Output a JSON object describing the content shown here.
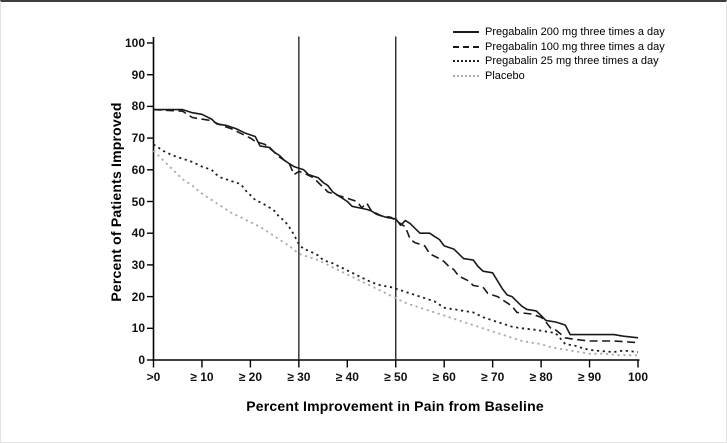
{
  "chart_data": {
    "type": "line",
    "title": "",
    "xlabel": "Percent Improvement in Pain from Baseline",
    "ylabel": "Percent of Patients Improved",
    "xlim": [
      0,
      100
    ],
    "ylim": [
      0,
      100
    ],
    "grid": false,
    "legend_position": "top-right",
    "reference_lines_x": [
      30,
      50
    ],
    "x_ticks": [
      {
        "value": 0,
        "label": ">0"
      },
      {
        "value": 10,
        "label": "≥ 10"
      },
      {
        "value": 20,
        "label": "≥ 20"
      },
      {
        "value": 30,
        "label": "≥ 30"
      },
      {
        "value": 40,
        "label": "≥ 40"
      },
      {
        "value": 50,
        "label": "≥ 50"
      },
      {
        "value": 60,
        "label": "≥ 60"
      },
      {
        "value": 70,
        "label": "≥ 70"
      },
      {
        "value": 80,
        "label": "≥ 80"
      },
      {
        "value": 90,
        "label": "≥ 90"
      },
      {
        "value": 100,
        "label": "100"
      }
    ],
    "y_ticks": [
      {
        "value": 0,
        "label": "0"
      },
      {
        "value": 10,
        "label": "10"
      },
      {
        "value": 20,
        "label": "20"
      },
      {
        "value": 30,
        "label": "30"
      },
      {
        "value": 40,
        "label": "40"
      },
      {
        "value": 50,
        "label": "50"
      },
      {
        "value": 60,
        "label": "60"
      },
      {
        "value": 70,
        "label": "70"
      },
      {
        "value": 80,
        "label": "80"
      },
      {
        "value": 90,
        "label": "90"
      },
      {
        "value": 100,
        "label": "100"
      }
    ],
    "series": [
      {
        "name": "Pregabalin 200 mg three times a day",
        "style": "solid",
        "color": "#1a1a1a",
        "points": [
          [
            0,
            79
          ],
          [
            6,
            79
          ],
          [
            8,
            78
          ],
          [
            10,
            77.5
          ],
          [
            12,
            76
          ],
          [
            13,
            74.5
          ],
          [
            15,
            74
          ],
          [
            17,
            73
          ],
          [
            19,
            71.5
          ],
          [
            20,
            71
          ],
          [
            21,
            70.5
          ],
          [
            22,
            67.5
          ],
          [
            24,
            67
          ],
          [
            25,
            65.5
          ],
          [
            26,
            64.5
          ],
          [
            27,
            63
          ],
          [
            28,
            62
          ],
          [
            29,
            61
          ],
          [
            31,
            60
          ],
          [
            32,
            58.5
          ],
          [
            34,
            57.5
          ],
          [
            35,
            56
          ],
          [
            36,
            55
          ],
          [
            37,
            53
          ],
          [
            38,
            52
          ],
          [
            39,
            51
          ],
          [
            40,
            50
          ],
          [
            41,
            48.5
          ],
          [
            44,
            47.5
          ],
          [
            45,
            47
          ],
          [
            46,
            46
          ],
          [
            48,
            45
          ],
          [
            50,
            44.5
          ],
          [
            51,
            42.5
          ],
          [
            52,
            44
          ],
          [
            53,
            43
          ],
          [
            54,
            41.5
          ],
          [
            55,
            40
          ],
          [
            57,
            40
          ],
          [
            58,
            39
          ],
          [
            59,
            38
          ],
          [
            60,
            36
          ],
          [
            62,
            35
          ],
          [
            63,
            33.5
          ],
          [
            64,
            32
          ],
          [
            66,
            31.5
          ],
          [
            67,
            29.5
          ],
          [
            68,
            28
          ],
          [
            70,
            27.5
          ],
          [
            71,
            25
          ],
          [
            72,
            22.5
          ],
          [
            73,
            20.5
          ],
          [
            74,
            20
          ],
          [
            75,
            18.5
          ],
          [
            76,
            17
          ],
          [
            77,
            16
          ],
          [
            79,
            15.5
          ],
          [
            80,
            14
          ],
          [
            81,
            12.5
          ],
          [
            83,
            12
          ],
          [
            84,
            11.5
          ],
          [
            85,
            11
          ],
          [
            86,
            8
          ],
          [
            90,
            8
          ],
          [
            95,
            8
          ],
          [
            97,
            7.5
          ],
          [
            100,
            7
          ]
        ]
      },
      {
        "name": "Pregabalin 100 mg three times a day",
        "style": "dashed",
        "color": "#1a1a1a",
        "points": [
          [
            0,
            79
          ],
          [
            6,
            78.5
          ],
          [
            8,
            76.5
          ],
          [
            10,
            76
          ],
          [
            12,
            75.5
          ],
          [
            14,
            74
          ],
          [
            16,
            73
          ],
          [
            18,
            71.5
          ],
          [
            20,
            70
          ],
          [
            21,
            69
          ],
          [
            23,
            68
          ],
          [
            25,
            65.5
          ],
          [
            26,
            64
          ],
          [
            28,
            62
          ],
          [
            29,
            58.5
          ],
          [
            30,
            59.5
          ],
          [
            31,
            59
          ],
          [
            33,
            57.5
          ],
          [
            34,
            56
          ],
          [
            35,
            54.5
          ],
          [
            36,
            53
          ],
          [
            38,
            52
          ],
          [
            40,
            51
          ],
          [
            42,
            50
          ],
          [
            43,
            48
          ],
          [
            44,
            49.5
          ],
          [
            45,
            47
          ],
          [
            47,
            45.5
          ],
          [
            49,
            45
          ],
          [
            50,
            44
          ],
          [
            51,
            43
          ],
          [
            52,
            42
          ],
          [
            53,
            38
          ],
          [
            54,
            37
          ],
          [
            56,
            36
          ],
          [
            57,
            33.5
          ],
          [
            59,
            32
          ],
          [
            60,
            31
          ],
          [
            61,
            29.5
          ],
          [
            62,
            28.5
          ],
          [
            63,
            26.5
          ],
          [
            65,
            25
          ],
          [
            66,
            23.5
          ],
          [
            68,
            23
          ],
          [
            69,
            21
          ],
          [
            71,
            20
          ],
          [
            73,
            18
          ],
          [
            74,
            17
          ],
          [
            75,
            15
          ],
          [
            78,
            14.5
          ],
          [
            80,
            13.5
          ],
          [
            81,
            12
          ],
          [
            82,
            10
          ],
          [
            83,
            9.5
          ],
          [
            85,
            7
          ],
          [
            87,
            6.5
          ],
          [
            90,
            6
          ],
          [
            95,
            6
          ],
          [
            100,
            5.5
          ]
        ]
      },
      {
        "name": "Pregabalin 25 mg three times a day",
        "style": "dotted",
        "color": "#1f1f1f",
        "points": [
          [
            0,
            68
          ],
          [
            2,
            66
          ],
          [
            4,
            64.5
          ],
          [
            6,
            63.5
          ],
          [
            8,
            62.5
          ],
          [
            10,
            61
          ],
          [
            12,
            60
          ],
          [
            13,
            58.5
          ],
          [
            14,
            57.5
          ],
          [
            16,
            56.5
          ],
          [
            18,
            55.5
          ],
          [
            19,
            53.5
          ],
          [
            21,
            50.5
          ],
          [
            23,
            49
          ],
          [
            24,
            48
          ],
          [
            25,
            47
          ],
          [
            26,
            45
          ],
          [
            27,
            44
          ],
          [
            28,
            42
          ],
          [
            29,
            39.5
          ],
          [
            30,
            36.5
          ],
          [
            31,
            35
          ],
          [
            32,
            34.5
          ],
          [
            34,
            33
          ],
          [
            35,
            31.5
          ],
          [
            37,
            30.5
          ],
          [
            39,
            29
          ],
          [
            41,
            27.5
          ],
          [
            43,
            26
          ],
          [
            45,
            24.5
          ],
          [
            47,
            23.5
          ],
          [
            49,
            23
          ],
          [
            50,
            22.5
          ],
          [
            52,
            21.5
          ],
          [
            54,
            20.5
          ],
          [
            56,
            19.5
          ],
          [
            58,
            18.5
          ],
          [
            60,
            16.5
          ],
          [
            62,
            16
          ],
          [
            64,
            15.5
          ],
          [
            66,
            15
          ],
          [
            68,
            13.5
          ],
          [
            70,
            12.5
          ],
          [
            72,
            11.5
          ],
          [
            74,
            10.5
          ],
          [
            76,
            10
          ],
          [
            79,
            9.5
          ],
          [
            81,
            9
          ],
          [
            83,
            8.5
          ],
          [
            85,
            5
          ],
          [
            87,
            4.5
          ],
          [
            89,
            3.5
          ],
          [
            91,
            3
          ],
          [
            95,
            2.5
          ],
          [
            97,
            3
          ],
          [
            100,
            2.5
          ]
        ]
      },
      {
        "name": "Placebo",
        "style": "dotted",
        "color": "#ababab",
        "points": [
          [
            0,
            66
          ],
          [
            2,
            63
          ],
          [
            4,
            60
          ],
          [
            6,
            57
          ],
          [
            8,
            55
          ],
          [
            10,
            52.5
          ],
          [
            12,
            50.5
          ],
          [
            14,
            48.5
          ],
          [
            16,
            46.5
          ],
          [
            18,
            45
          ],
          [
            20,
            43.5
          ],
          [
            22,
            42
          ],
          [
            24,
            40
          ],
          [
            26,
            38
          ],
          [
            28,
            36
          ],
          [
            30,
            33.5
          ],
          [
            32,
            32.5
          ],
          [
            34,
            31.5
          ],
          [
            36,
            30
          ],
          [
            38,
            28.5
          ],
          [
            40,
            27
          ],
          [
            42,
            25.5
          ],
          [
            44,
            24
          ],
          [
            46,
            22.5
          ],
          [
            48,
            21
          ],
          [
            50,
            19.5
          ],
          [
            52,
            18
          ],
          [
            54,
            17
          ],
          [
            56,
            16
          ],
          [
            58,
            15
          ],
          [
            60,
            14
          ],
          [
            62,
            13
          ],
          [
            64,
            12
          ],
          [
            66,
            11
          ],
          [
            68,
            10
          ],
          [
            70,
            9
          ],
          [
            72,
            8
          ],
          [
            74,
            7
          ],
          [
            76,
            6
          ],
          [
            78,
            5.5
          ],
          [
            80,
            5
          ],
          [
            82,
            4
          ],
          [
            84,
            3.5
          ],
          [
            86,
            3
          ],
          [
            88,
            2.5
          ],
          [
            90,
            2
          ],
          [
            93,
            2
          ],
          [
            96,
            1.5
          ],
          [
            100,
            1.5
          ]
        ]
      }
    ]
  }
}
